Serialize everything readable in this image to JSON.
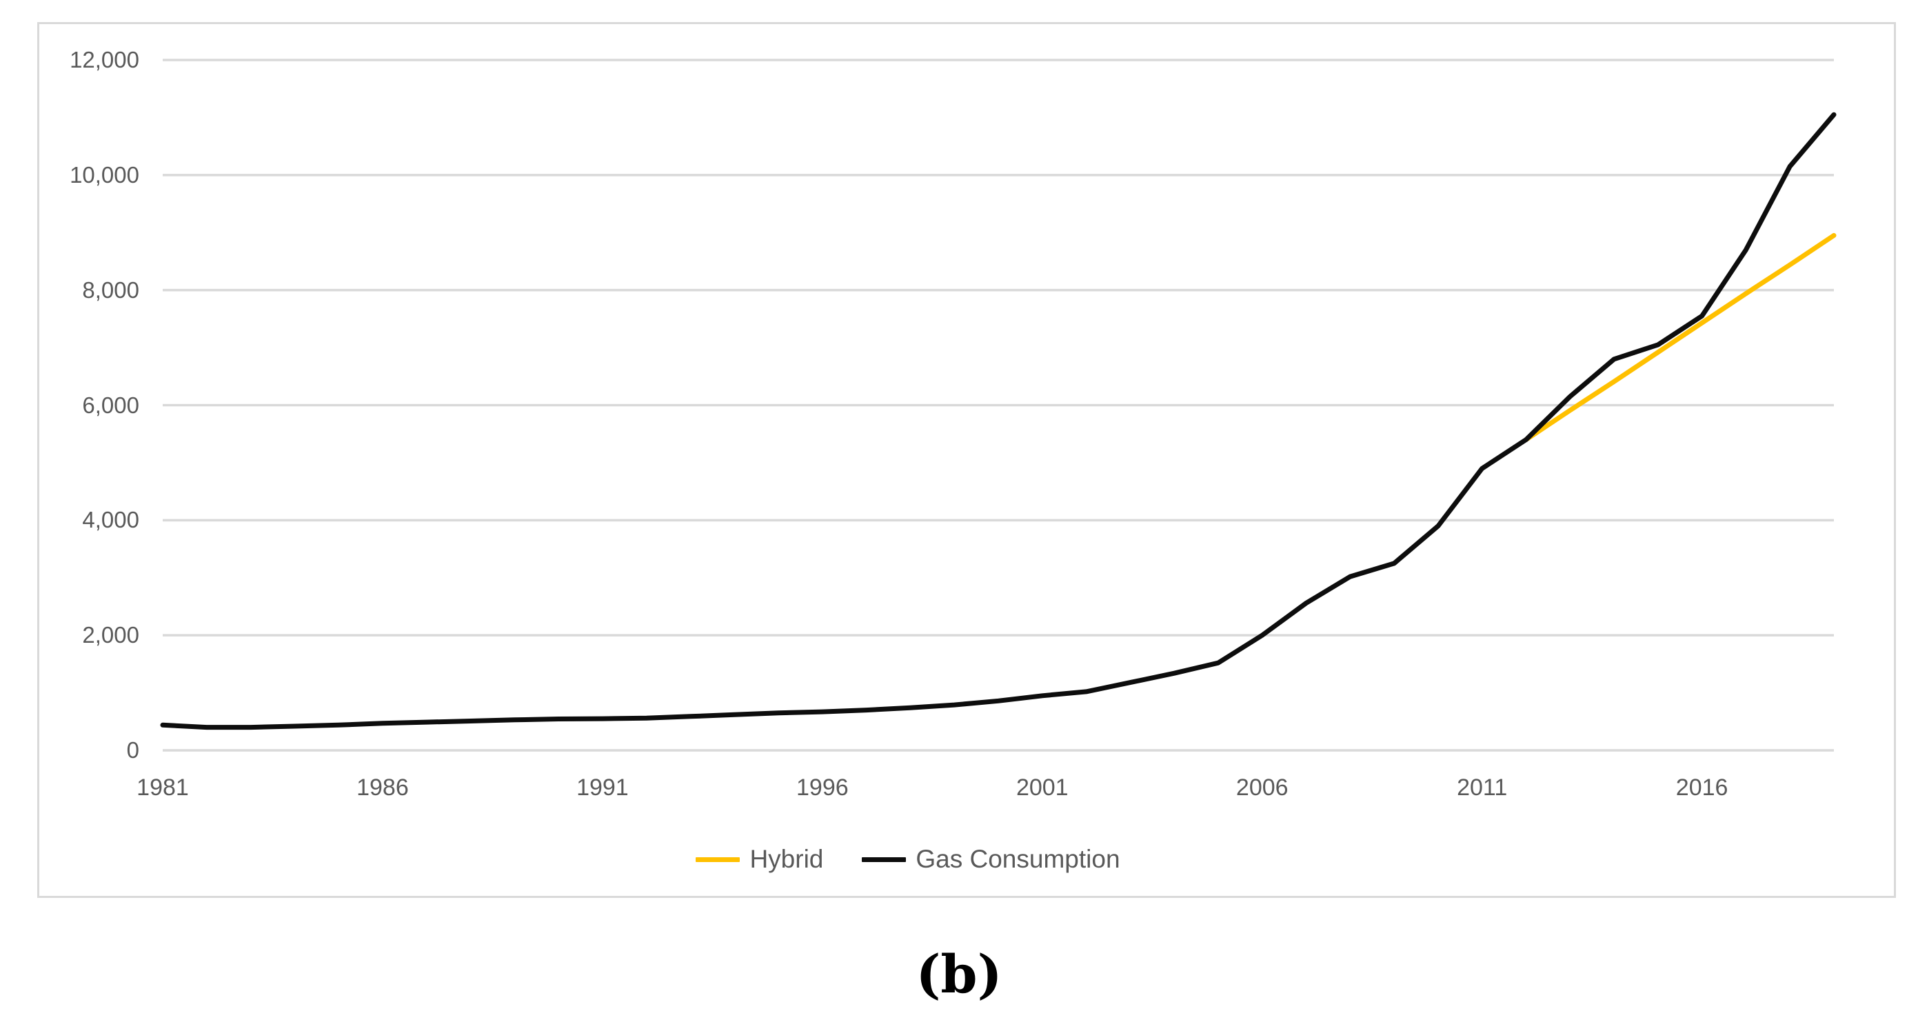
{
  "caption": "(b)",
  "chart_data": {
    "type": "line",
    "title": "",
    "xlabel": "",
    "ylabel": "",
    "xlim": [
      1981,
      2019
    ],
    "ylim": [
      0,
      12000
    ],
    "grid": "horizontal",
    "legend_position": "bottom-center",
    "colors": {
      "grid": "#D9D9D9",
      "panel_border": "#D9D9D9",
      "axis_text": "#595959",
      "hybrid": "#FFC000",
      "gas": "#0D0D0D"
    },
    "x": [
      1981,
      1982,
      1983,
      1984,
      1985,
      1986,
      1987,
      1988,
      1989,
      1990,
      1991,
      1992,
      1993,
      1994,
      1995,
      1996,
      1997,
      1998,
      1999,
      2000,
      2001,
      2002,
      2003,
      2004,
      2005,
      2006,
      2007,
      2008,
      2009,
      2010,
      2011,
      2012,
      2013,
      2014,
      2015,
      2016,
      2017,
      2018,
      2019
    ],
    "x_tick_labels": [
      "1981",
      "1986",
      "1991",
      "1996",
      "2001",
      "2006",
      "2011",
      "2016"
    ],
    "x_tick_years": [
      1981,
      1986,
      1991,
      1996,
      2001,
      2006,
      2011,
      2016
    ],
    "y_tick_labels": [
      "0",
      "2,000",
      "4,000",
      "6,000",
      "8,000",
      "10,000",
      "12,000"
    ],
    "y_tick_values": [
      0,
      2000,
      4000,
      6000,
      8000,
      10000,
      12000
    ],
    "series": [
      {
        "name": "Hybrid",
        "color": "#FFC000",
        "values": [
          null,
          null,
          null,
          null,
          null,
          null,
          null,
          null,
          null,
          null,
          null,
          null,
          null,
          null,
          null,
          null,
          null,
          null,
          null,
          null,
          null,
          null,
          null,
          null,
          null,
          null,
          null,
          null,
          null,
          null,
          null,
          5400,
          5910,
          6410,
          6920,
          7430,
          7940,
          8440,
          8950
        ]
      },
      {
        "name": "Gas Consumption",
        "color": "#0D0D0D",
        "values": [
          440,
          400,
          400,
          420,
          440,
          470,
          490,
          510,
          530,
          545,
          550,
          560,
          590,
          620,
          650,
          670,
          700,
          740,
          790,
          860,
          950,
          1020,
          1180,
          1340,
          1520,
          2000,
          2560,
          3020,
          3250,
          3900,
          4900,
          5400,
          6150,
          6800,
          7050,
          7550,
          8700,
          10150,
          11050
        ]
      }
    ]
  }
}
